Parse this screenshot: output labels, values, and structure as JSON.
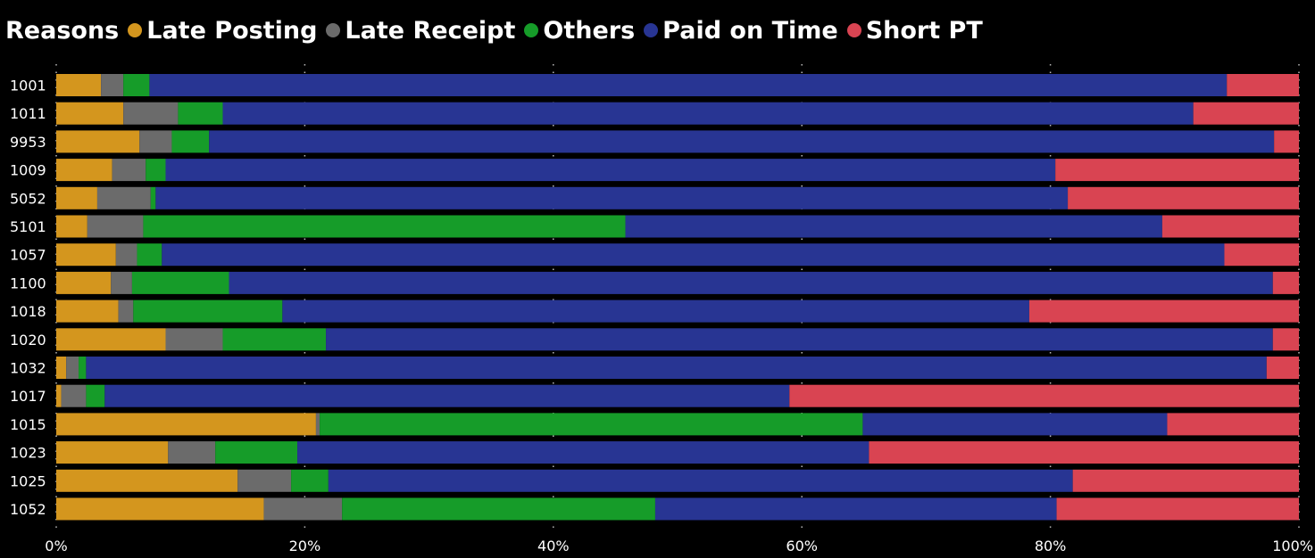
{
  "legend": {
    "title": "Reasons"
  },
  "colors": {
    "Late Posting": "#d4961e",
    "Late Receipt": "#6b6b6b",
    "Others": "#169c29",
    "Paid on Time": "#283593",
    "Short PT": "#d94452",
    "grid": "#bbbbbb",
    "text": "#ffffff",
    "background": "#000000"
  },
  "chart_data": {
    "type": "bar",
    "orientation": "horizontal",
    "stacked": "100%",
    "categories": [
      "1001",
      "1011",
      "9953",
      "1009",
      "5052",
      "5101",
      "1057",
      "1100",
      "1018",
      "1020",
      "1032",
      "1017",
      "1015",
      "1023",
      "1025",
      "1052"
    ],
    "series": [
      {
        "name": "Late Posting",
        "values": [
          3.6,
          5.4,
          6.7,
          4.5,
          3.3,
          2.5,
          4.8,
          4.4,
          5.0,
          8.8,
          0.8,
          0.4,
          20.9,
          9.0,
          14.6,
          16.7
        ]
      },
      {
        "name": "Late Receipt",
        "values": [
          1.8,
          4.4,
          2.6,
          2.7,
          4.3,
          4.5,
          1.7,
          1.7,
          1.2,
          4.6,
          1.0,
          2.0,
          0.3,
          3.8,
          4.3,
          6.3
        ]
      },
      {
        "name": "Others",
        "values": [
          2.1,
          3.6,
          3.0,
          1.6,
          0.4,
          38.8,
          2.0,
          7.8,
          12.0,
          8.3,
          0.6,
          1.5,
          43.7,
          6.6,
          3.0,
          25.2
        ]
      },
      {
        "name": "Paid on Time",
        "values": [
          86.7,
          78.1,
          85.7,
          71.6,
          73.4,
          43.2,
          85.5,
          84.0,
          60.1,
          76.2,
          95.0,
          55.1,
          24.5,
          46.0,
          59.9,
          32.3
        ]
      },
      {
        "name": "Short PT",
        "values": [
          5.8,
          8.5,
          2.0,
          19.6,
          18.6,
          11.0,
          6.0,
          2.1,
          21.7,
          2.1,
          2.6,
          41.0,
          10.6,
          34.6,
          18.2,
          19.5
        ]
      }
    ],
    "xlim": [
      0,
      100
    ],
    "x_ticks": [
      "0%",
      "20%",
      "40%",
      "60%",
      "80%",
      "100%"
    ],
    "grid": true,
    "legend_position": "top-left"
  }
}
